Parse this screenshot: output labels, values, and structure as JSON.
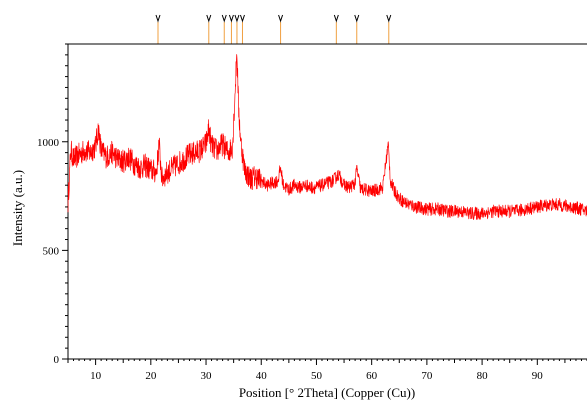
{
  "chart_data": {
    "type": "line",
    "title": "",
    "xlabel": "Position [° 2Theta] (Copper (Cu))",
    "ylabel": "Intensity (a.u.)",
    "xlim": [
      5,
      99
    ],
    "ylim": [
      0,
      1450
    ],
    "xticks": [
      10,
      20,
      30,
      40,
      50,
      60,
      70,
      80,
      90
    ],
    "yticks": [
      0,
      500,
      1000
    ],
    "grid": false,
    "legend": "none",
    "series": [
      {
        "color": "#ff0000",
        "x": [
          5,
          5.5,
          6,
          7,
          8,
          9,
          10,
          10.5,
          11,
          12,
          13,
          14,
          15,
          16,
          17,
          18,
          19,
          20,
          21,
          21.5,
          22,
          23,
          24,
          25,
          26,
          27,
          28,
          29,
          30,
          30.5,
          31,
          32,
          33,
          34,
          34.8,
          35.3,
          35.6,
          35.9,
          36.3,
          37,
          38,
          39,
          40,
          41,
          42,
          43,
          43.5,
          44,
          45,
          46,
          47,
          48,
          49,
          50,
          51,
          52,
          53,
          54,
          55,
          56,
          57,
          57.3,
          58,
          59,
          60,
          61,
          62,
          62.7,
          63,
          63.4,
          64,
          65,
          66,
          67,
          68,
          70,
          72,
          74,
          76,
          78,
          80,
          82,
          84,
          86,
          88,
          90,
          92,
          94,
          96,
          98,
          99
        ],
        "y": [
          720,
          960,
          920,
          940,
          960,
          950,
          980,
          1060,
          960,
          930,
          950,
          920,
          910,
          930,
          900,
          880,
          890,
          870,
          860,
          990,
          830,
          860,
          880,
          900,
          920,
          940,
          950,
          960,
          990,
          1060,
          980,
          960,
          990,
          950,
          980,
          1250,
          1420,
          1150,
          1000,
          870,
          830,
          840,
          820,
          800,
          810,
          820,
          880,
          800,
          780,
          800,
          790,
          800,
          790,
          790,
          800,
          810,
          820,
          850,
          800,
          790,
          810,
          880,
          780,
          780,
          770,
          780,
          790,
          930,
          990,
          820,
          780,
          740,
          720,
          710,
          700,
          690,
          690,
          680,
          680,
          670,
          670,
          680,
          680,
          680,
          690,
          700,
          710,
          710,
          700,
          690,
          680
        ]
      }
    ],
    "reference_markers": [
      21.3,
      30.5,
      33.3,
      34.6,
      35.6,
      36.6,
      43.5,
      53.6,
      57.3,
      63.1
    ]
  }
}
